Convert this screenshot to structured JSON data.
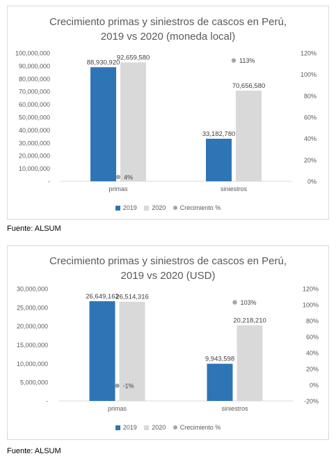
{
  "colors": {
    "series_2019": "#2e75b6",
    "series_2020": "#d9d9d9",
    "growth": "#a5a5a5",
    "axis_text": "#595959"
  },
  "chart_data": [
    {
      "type": "bar",
      "title": [
        "Crecimiento primas y siniestros de cascos en Perú,",
        "2019 vs 2020 (moneda local)"
      ],
      "categories": [
        "primas",
        "siniestros"
      ],
      "series": [
        {
          "name": "2019",
          "values": [
            88930920,
            33182780
          ],
          "labels": [
            "88,930,920",
            "33,182,780"
          ]
        },
        {
          "name": "2020",
          "values": [
            92659580,
            70656580
          ],
          "labels": [
            "92,659,580",
            "70,656,580"
          ]
        }
      ],
      "secondary_series": {
        "name": "Crecimiento %",
        "type": "scatter",
        "values": [
          4,
          113
        ],
        "labels": [
          "4%",
          "113%"
        ]
      },
      "ylim": [
        0,
        100000000
      ],
      "y_ticks": [
        "-",
        "10,000,000",
        "20,000,000",
        "30,000,000",
        "40,000,000",
        "50,000,000",
        "60,000,000",
        "70,000,000",
        "80,000,000",
        "90,000,000",
        "100,000,000"
      ],
      "y2lim": [
        0,
        120
      ],
      "y2_ticks": [
        "0%",
        "20%",
        "40%",
        "60%",
        "80%",
        "100%",
        "120%"
      ],
      "legend_position": "bottom",
      "grid": false
    },
    {
      "type": "bar",
      "title": [
        "Crecimiento primas y siniestros de cascos en Perú,",
        "2019 vs 2020 (USD)"
      ],
      "categories": [
        "primas",
        "siniestros"
      ],
      "series": [
        {
          "name": "2019",
          "values": [
            26649162,
            9943598
          ],
          "labels": [
            "26,649,162",
            "9,943,598"
          ]
        },
        {
          "name": "2020",
          "values": [
            26514316,
            20218210
          ],
          "labels": [
            "26,514,316",
            "20,218,210"
          ]
        }
      ],
      "secondary_series": {
        "name": "Crecimiento %",
        "type": "scatter",
        "values": [
          -1,
          103
        ],
        "labels": [
          "-1%",
          "103%"
        ]
      },
      "ylim": [
        0,
        30000000
      ],
      "y_ticks": [
        "-",
        "5,000,000",
        "10,000,000",
        "15,000,000",
        "20,000,000",
        "25,000,000",
        "30,000,000"
      ],
      "y2lim": [
        -20,
        120
      ],
      "y2_ticks": [
        "-20%",
        "0%",
        "20%",
        "40%",
        "60%",
        "80%",
        "100%",
        "120%"
      ],
      "legend_position": "bottom",
      "grid": false
    }
  ],
  "legend": {
    "item_2019": "2019",
    "item_2020": "2020",
    "item_growth": "Crecimiento %"
  },
  "sources": [
    "Fuente: ALSUM",
    "Fuente: ALSUM"
  ]
}
